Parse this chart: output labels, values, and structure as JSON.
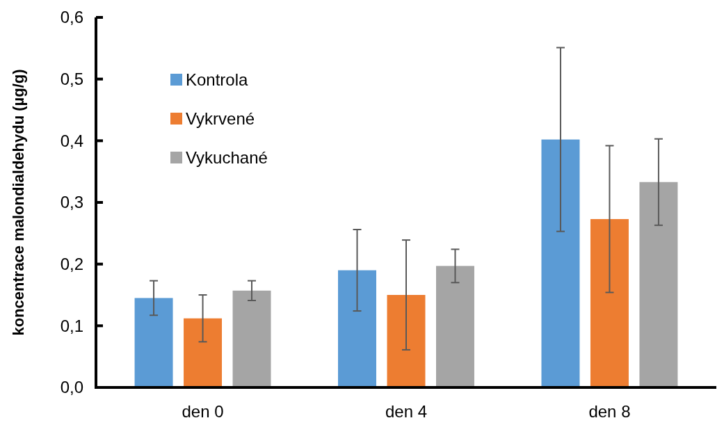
{
  "chart_data": {
    "type": "bar",
    "ylabel": "koncentrace malondialdehydu (µg/g)",
    "categories": [
      "den 0",
      "den 4",
      "den 8"
    ],
    "series": [
      {
        "name": "Kontrola",
        "color": "#5b9bd5",
        "values": [
          0.145,
          0.19,
          0.402
        ],
        "errors": [
          0.028,
          0.066,
          0.149
        ]
      },
      {
        "name": "Vykrvené",
        "color": "#ed7d31",
        "values": [
          0.112,
          0.15,
          0.273
        ],
        "errors": [
          0.038,
          0.089,
          0.119
        ]
      },
      {
        "name": "Vykuchané",
        "color": "#a5a5a5",
        "values": [
          0.157,
          0.197,
          0.333
        ],
        "errors": [
          0.016,
          0.027,
          0.07
        ]
      }
    ],
    "ylim": [
      0,
      0.6
    ],
    "yticks": [
      {
        "value": 0,
        "label": "0,0"
      },
      {
        "value": 0.1,
        "label": "0,1"
      },
      {
        "value": 0.2,
        "label": "0,2"
      },
      {
        "value": 0.3,
        "label": "0,3"
      },
      {
        "value": 0.4,
        "label": "0,4"
      },
      {
        "value": 0.5,
        "label": "0,5"
      },
      {
        "value": 0.6,
        "label": "0,6"
      }
    ],
    "grid": false,
    "legend": "top left"
  }
}
